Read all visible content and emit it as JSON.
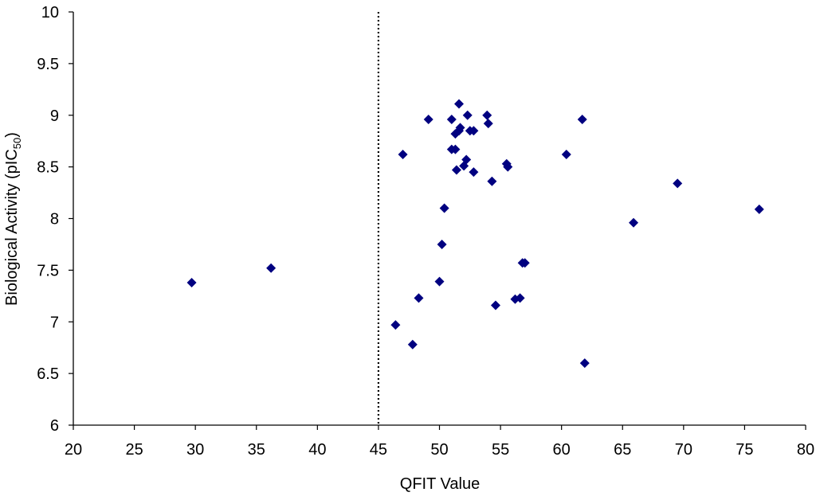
{
  "chart_data": {
    "type": "scatter",
    "xlabel": "QFIT Value",
    "ylabel_main": "Biological Activity (pIC",
    "ylabel_sub": "50",
    "ylabel_end": ")",
    "xlim": [
      20,
      80
    ],
    "ylim": [
      6,
      10
    ],
    "x_ticks": [
      20,
      25,
      30,
      35,
      40,
      45,
      50,
      55,
      60,
      65,
      70,
      75,
      80
    ],
    "y_ticks": [
      6,
      6.5,
      7,
      7.5,
      8,
      8.5,
      9,
      9.5,
      10
    ],
    "y_tick_labels": [
      "6",
      "6.5",
      "7",
      "7.5",
      "8",
      "8.5",
      "9",
      "9.5",
      "10"
    ],
    "grid": false,
    "marker_color": "#000080",
    "threshold_line": {
      "x": 45,
      "style": "dotted",
      "color": "#000000"
    },
    "series": [
      {
        "points": [
          [
            29.7,
            7.38
          ],
          [
            36.2,
            7.52
          ],
          [
            46.4,
            6.97
          ],
          [
            47.0,
            8.62
          ],
          [
            47.8,
            6.78
          ],
          [
            48.3,
            7.23
          ],
          [
            49.1,
            8.96
          ],
          [
            50.0,
            7.39
          ],
          [
            50.2,
            7.75
          ],
          [
            50.4,
            8.1
          ],
          [
            51.0,
            8.96
          ],
          [
            51.0,
            8.67
          ],
          [
            51.3,
            8.67
          ],
          [
            51.3,
            8.82
          ],
          [
            51.4,
            8.47
          ],
          [
            51.6,
            8.85
          ],
          [
            51.6,
            9.11
          ],
          [
            51.7,
            8.88
          ],
          [
            52.0,
            8.51
          ],
          [
            52.2,
            8.57
          ],
          [
            52.3,
            9.0
          ],
          [
            52.5,
            8.85
          ],
          [
            52.8,
            8.85
          ],
          [
            52.8,
            8.45
          ],
          [
            53.9,
            9.0
          ],
          [
            54.0,
            8.92
          ],
          [
            54.3,
            8.36
          ],
          [
            54.6,
            7.16
          ],
          [
            55.5,
            8.53
          ],
          [
            55.6,
            8.5
          ],
          [
            56.2,
            7.22
          ],
          [
            56.6,
            7.23
          ],
          [
            56.8,
            7.57
          ],
          [
            57.0,
            7.57
          ],
          [
            60.4,
            8.62
          ],
          [
            61.7,
            8.96
          ],
          [
            61.9,
            6.6
          ],
          [
            65.9,
            7.96
          ],
          [
            69.5,
            8.34
          ],
          [
            76.2,
            8.09
          ]
        ]
      }
    ]
  }
}
